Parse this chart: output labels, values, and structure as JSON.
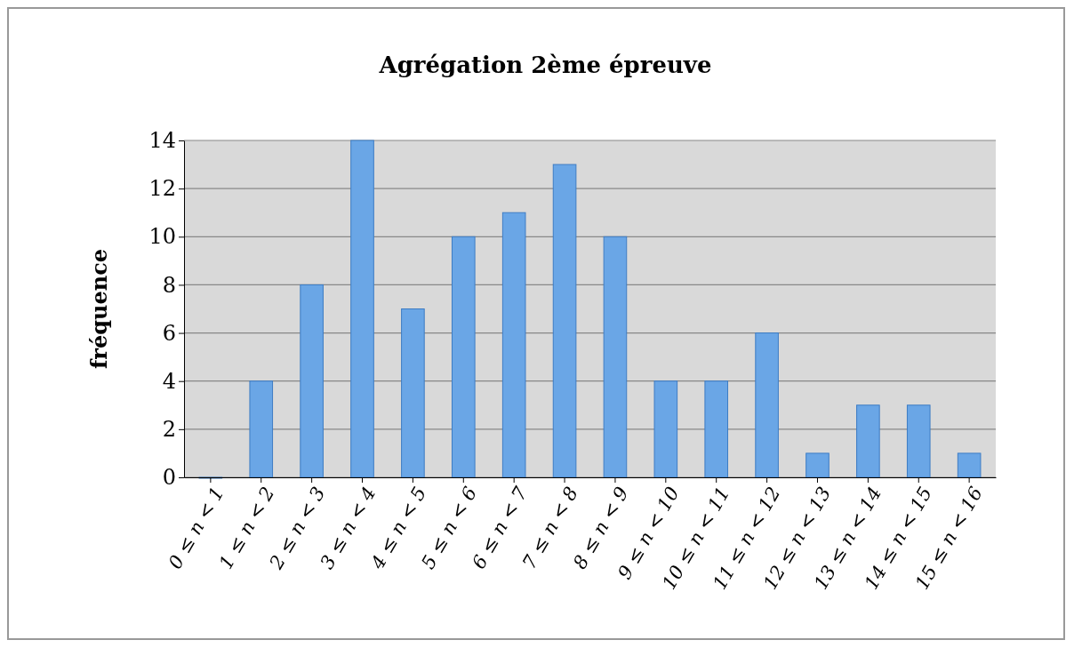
{
  "chart_data": {
    "type": "bar",
    "title": "Agrégation 2ème épreuve",
    "ylabel": "fréquence",
    "categories": [
      "0 ≤ n < 1",
      "1 ≤ n < 2",
      "2 ≤ n < 3",
      "3 ≤ n < 4",
      "4 ≤ n < 5",
      "5 ≤ n < 6",
      "6 ≤ n < 7",
      "7 ≤ n < 8",
      "8 ≤ n < 9",
      "9 ≤ n < 10",
      "10 ≤ n < 11",
      "11 ≤ n < 12",
      "12 ≤ n < 13",
      "13 ≤ n < 14",
      "14 ≤ n < 15",
      "15 ≤ n < 16"
    ],
    "values": [
      0,
      4,
      8,
      14,
      7,
      10,
      11,
      13,
      10,
      4,
      4,
      6,
      1,
      3,
      3,
      1
    ],
    "color": "#6aa6e6",
    "ylim": [
      0,
      14
    ],
    "yticks": [
      0,
      2,
      4,
      6,
      8,
      10,
      12,
      14
    ],
    "grid": true
  }
}
